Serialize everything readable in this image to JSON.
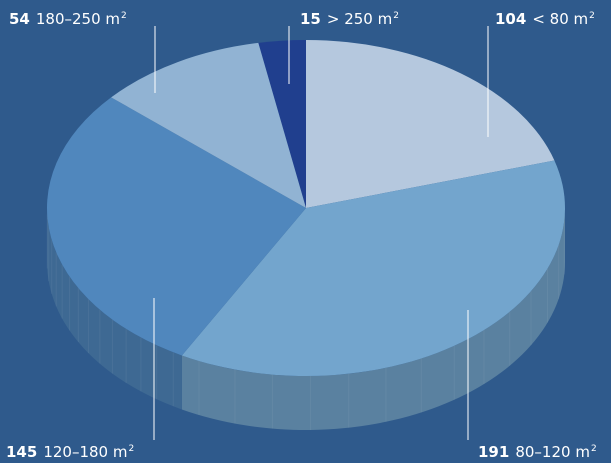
{
  "chart_data": {
    "type": "pie",
    "style": "3d",
    "slices": [
      {
        "label": "15",
        "category": "> 250",
        "value": 15,
        "color": "#203f8e"
      },
      {
        "label": "104",
        "category": "< 80",
        "value": 104,
        "color": "#b5c8de"
      },
      {
        "label": "191",
        "category": "80–120",
        "value": 191,
        "color": "#73a5cd"
      },
      {
        "label": "145",
        "category": "120–180",
        "value": 145,
        "color": "#5087bd"
      },
      {
        "label": "54",
        "category": "180–250",
        "value": 54,
        "color": "#91b3d3"
      }
    ],
    "unit": "m",
    "unit_superscript": "2"
  }
}
